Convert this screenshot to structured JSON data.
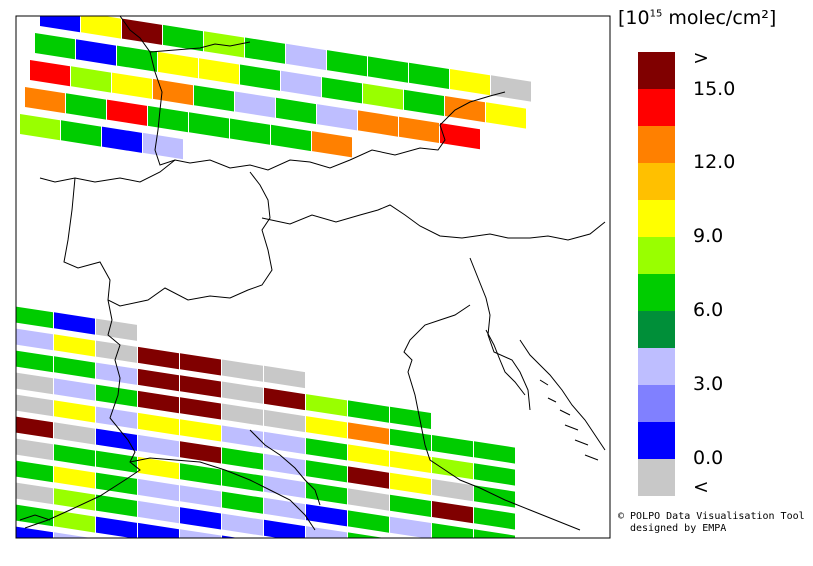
{
  "legend": {
    "unit_prefix": "[10",
    "unit_exp": "15",
    "unit_suffix": " molec/cm²]",
    "ticks": [
      ">",
      "15.0",
      "12.0",
      "9.0",
      "6.0",
      "3.0",
      "0.0",
      "<"
    ],
    "colors": [
      "#800000",
      "#ff0000",
      "#ff8000",
      "#ffc000",
      "#ffff00",
      "#99ff00",
      "#00cc00",
      "#008f39",
      "#bebeff",
      "#8080ff",
      "#0000ff",
      "#c8c8c8"
    ]
  },
  "credit": {
    "line1": "© POLPO Data Visualisation Tool",
    "line2": "designed by EMPA"
  },
  "swaths": [
    {
      "rows": [
        [
          "blue",
          "yellow",
          "maroon",
          "green",
          "lime",
          "green",
          "lightblue",
          "green",
          "green",
          "green",
          "yellow",
          "gray"
        ],
        [
          "green",
          "blue",
          "green",
          "yellow",
          "yellow",
          "green",
          "lightblue",
          "green",
          "lime",
          "green",
          "orange",
          "yellow"
        ],
        [
          "red",
          "lime",
          "yellow",
          "orange",
          "green",
          "lightblue",
          "green",
          "lightblue",
          "orange",
          "orange",
          "red"
        ],
        [
          "orange",
          "green",
          "red",
          "green",
          "green",
          "green",
          "green",
          "orange"
        ],
        [
          "lime",
          "green",
          "blue",
          "lightblue"
        ]
      ]
    },
    {
      "rows": [
        [
          "green",
          "blue",
          "gray"
        ],
        [
          "lightblue",
          "yellow",
          "gray",
          "maroon",
          "maroon",
          "gray",
          "gray"
        ],
        [
          "green",
          "green",
          "lightblue",
          "maroon",
          "maroon",
          "gray",
          "maroon",
          "lime",
          "green",
          "green"
        ],
        [
          "gray",
          "lightblue",
          "green",
          "maroon",
          "maroon",
          "gray",
          "gray",
          "yellow",
          "orange",
          "green",
          "green",
          "green"
        ],
        [
          "gray",
          "yellow",
          "lightblue",
          "yellow",
          "yellow",
          "lightblue",
          "lightblue",
          "green",
          "yellow",
          "yellow",
          "lime",
          "green"
        ],
        [
          "maroon",
          "gray",
          "blue",
          "lightblue",
          "maroon",
          "green",
          "lightblue",
          "green",
          "maroon",
          "yellow",
          "gray",
          "green"
        ],
        [
          "gray",
          "green",
          "green",
          "yellow",
          "green",
          "green",
          "lightblue",
          "green",
          "gray",
          "green",
          "maroon",
          "green"
        ],
        [
          "green",
          "yellow",
          "green",
          "lightblue",
          "lightblue",
          "green",
          "lightblue",
          "blue",
          "green",
          "lightblue",
          "green",
          "green"
        ],
        [
          "gray",
          "lime",
          "green",
          "lightblue",
          "blue",
          "lightblue",
          "blue",
          "lightblue",
          "green",
          "maroon",
          "green"
        ],
        [
          "green",
          "lime",
          "blue",
          "blue",
          "lightblue",
          "blue",
          "blue",
          "lightblue",
          "yellow",
          "lightblue"
        ],
        [
          "blue",
          "lightblue",
          "blue",
          "blue",
          "blue",
          "lightblue",
          "blue"
        ]
      ]
    }
  ]
}
